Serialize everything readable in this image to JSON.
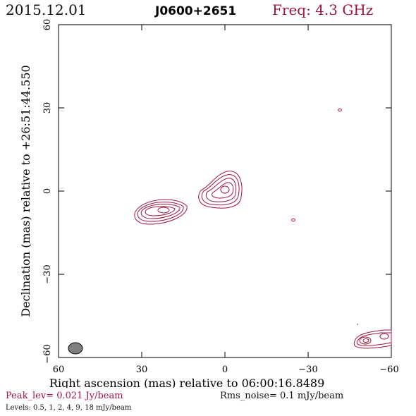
{
  "header": {
    "date": "2015.12.01",
    "source": "J0600+2651",
    "freq": "Freq: 4.3 GHz"
  },
  "axes": {
    "xlabel": "Right ascension (mas) relative to 06:00:16.8489",
    "ylabel": "Declination (mas) relative to +26:51:44.550",
    "xticks": [
      "60",
      "30",
      "0",
      "−30",
      "−60"
    ],
    "yticks": [
      "60",
      "30",
      "0",
      "−30",
      "−60"
    ],
    "xlim": [
      60,
      -60
    ],
    "ylim": [
      -60,
      60
    ]
  },
  "footer": {
    "peak": "Peak_lev=  0.021 Jy/beam",
    "rms": "Rms_noise=   0.1 mJy/beam",
    "levels": "Levels: 0.5,    1,    2,    4,    9,    18 mJy/beam"
  },
  "colors": {
    "contour": "#a0163c",
    "beam": "#808080"
  }
}
